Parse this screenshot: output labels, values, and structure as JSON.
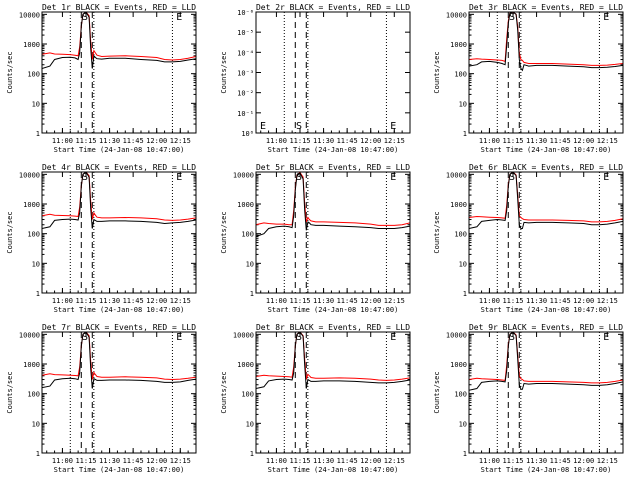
{
  "colors": {
    "background": "#ffffff",
    "axes": "#000000",
    "events": "#000000",
    "lld": "#ff0000"
  },
  "x_ticks": [
    "11:00",
    "11:15",
    "11:30",
    "11:45",
    "12:00",
    "12:15"
  ],
  "y_ticks_log": [
    "1",
    "10",
    "100",
    "1000",
    "10000"
  ],
  "y_ticks_tiny": [
    "10⁻⁶",
    "10⁻⁵",
    "10⁻⁴",
    "10⁻³",
    "10⁻²",
    "10⁻¹",
    "10⁰"
  ],
  "ylabel": "Counts/sec",
  "xlabel": "Start Time (24-Jan-08 10:47:00)",
  "markers": {
    "s": "S",
    "e": "E"
  },
  "chart_data": [
    {
      "type": "line",
      "title": "Det 1r BLACK = Events, RED = LLD",
      "xlim": [
        "10:47",
        "12:25"
      ],
      "yscale": "log",
      "ylim": [
        1,
        12000
      ],
      "tiny": false,
      "s_time": "11:15",
      "e_time": "12:15",
      "dotted": [
        "11:05",
        "11:20",
        "12:10"
      ],
      "dashed": [
        "11:12",
        "11:19"
      ],
      "x": [
        "10:47",
        "10:52",
        "10:55",
        "11:00",
        "11:05",
        "11:08",
        "11:10",
        "11:11",
        "11:12",
        "11:13",
        "11:15",
        "11:17",
        "11:18",
        "11:19",
        "11:20",
        "11:21",
        "11:22",
        "11:25",
        "11:30",
        "11:40",
        "11:50",
        "12:00",
        "12:05",
        "12:10",
        "12:15",
        "12:20",
        "12:25"
      ],
      "series": [
        {
          "name": "BLACK = Events",
          "values": [
            150,
            180,
            300,
            350,
            360,
            340,
            300,
            500,
            4000,
            10000,
            12000,
            8000,
            700,
            150,
            400,
            350,
            320,
            310,
            330,
            330,
            300,
            280,
            250,
            250,
            260,
            290,
            320
          ]
        },
        {
          "name": "RED = LLD",
          "values": [
            450,
            500,
            460,
            450,
            440,
            420,
            400,
            800,
            4000,
            10000,
            12000,
            9000,
            1200,
            300,
            600,
            500,
            420,
            380,
            390,
            400,
            380,
            350,
            300,
            290,
            300,
            330,
            380
          ]
        }
      ]
    },
    {
      "type": "line",
      "title": "Det 2r BLACK = Events, RED = LLD",
      "xlim": [
        "10:47",
        "12:25"
      ],
      "yscale": "log",
      "ylim": [
        1,
        1e-06
      ],
      "tiny": true,
      "s_time": "11:15",
      "e_time": "12:15",
      "dotted": [
        "11:05",
        "11:20",
        "12:10"
      ],
      "dashed": [
        "11:12",
        "11:19"
      ],
      "x": [],
      "series": []
    },
    {
      "type": "line",
      "title": "Det 3r BLACK = Events, RED = LLD",
      "xlim": [
        "10:47",
        "12:25"
      ],
      "yscale": "log",
      "ylim": [
        1,
        12000
      ],
      "tiny": false,
      "s_time": "11:15",
      "e_time": "12:15",
      "dotted": [
        "11:05",
        "11:20",
        "12:10"
      ],
      "dashed": [
        "11:12",
        "11:19"
      ],
      "x": [
        "10:47",
        "10:52",
        "10:55",
        "11:00",
        "11:05",
        "11:08",
        "11:10",
        "11:11",
        "11:12",
        "11:13",
        "11:15",
        "11:17",
        "11:18",
        "11:19",
        "11:20",
        "11:21",
        "11:22",
        "11:25",
        "11:30",
        "11:40",
        "11:50",
        "12:00",
        "12:05",
        "12:10",
        "12:15",
        "12:20",
        "12:25"
      ],
      "series": [
        {
          "name": "BLACK = Events",
          "values": [
            180,
            200,
            250,
            260,
            240,
            220,
            200,
            900,
            5000,
            11000,
            12000,
            10000,
            3000,
            300,
            150,
            130,
            200,
            180,
            190,
            190,
            180,
            170,
            160,
            160,
            165,
            175,
            190
          ]
        },
        {
          "name": "RED = LLD",
          "values": [
            300,
            320,
            310,
            300,
            290,
            280,
            260,
            1500,
            6000,
            11000,
            12000,
            10000,
            4000,
            500,
            300,
            280,
            240,
            220,
            220,
            220,
            210,
            200,
            190,
            190,
            195,
            205,
            220
          ]
        }
      ]
    },
    {
      "type": "line",
      "title": "Det 4r BLACK = Events, RED = LLD",
      "xlim": [
        "10:47",
        "12:25"
      ],
      "yscale": "log",
      "ylim": [
        1,
        12000
      ],
      "tiny": false,
      "s_time": "11:15",
      "e_time": "12:15",
      "dotted": [
        "11:05",
        "11:20",
        "12:10"
      ],
      "dashed": [
        "11:12",
        "11:19"
      ],
      "x": [
        "10:47",
        "10:52",
        "10:55",
        "11:00",
        "11:05",
        "11:08",
        "11:10",
        "11:11",
        "11:12",
        "11:13",
        "11:15",
        "11:17",
        "11:18",
        "11:19",
        "11:20",
        "11:21",
        "11:22",
        "11:25",
        "11:30",
        "11:40",
        "11:50",
        "12:00",
        "12:05",
        "12:10",
        "12:15",
        "12:20",
        "12:25"
      ],
      "series": [
        {
          "name": "BLACK = Events",
          "values": [
            150,
            170,
            280,
            300,
            310,
            300,
            290,
            500,
            4000,
            10000,
            12000,
            8000,
            700,
            150,
            300,
            280,
            260,
            260,
            270,
            270,
            260,
            240,
            220,
            230,
            240,
            260,
            290
          ]
        },
        {
          "name": "RED = LLD",
          "values": [
            400,
            450,
            420,
            410,
            400,
            390,
            380,
            800,
            4000,
            10000,
            12000,
            9000,
            1200,
            300,
            500,
            420,
            360,
            340,
            340,
            350,
            340,
            320,
            290,
            280,
            290,
            310,
            340
          ]
        }
      ]
    },
    {
      "type": "line",
      "title": "Det 5r BLACK = Events, RED = LLD",
      "xlim": [
        "10:47",
        "12:25"
      ],
      "yscale": "log",
      "ylim": [
        1,
        12000
      ],
      "tiny": false,
      "s_time": "11:15",
      "e_time": "12:15",
      "dotted": [
        "11:05",
        "11:20",
        "12:10"
      ],
      "dashed": [
        "11:12",
        "11:19"
      ],
      "x": [
        "10:47",
        "10:52",
        "10:55",
        "11:00",
        "11:05",
        "11:08",
        "11:10",
        "11:11",
        "11:12",
        "11:13",
        "11:15",
        "11:17",
        "11:18",
        "11:19",
        "11:20",
        "11:21",
        "11:22",
        "11:25",
        "11:30",
        "11:40",
        "11:50",
        "12:00",
        "12:05",
        "12:10",
        "12:15",
        "12:20",
        "12:25"
      ],
      "series": [
        {
          "name": "BLACK = Events",
          "values": [
            80,
            100,
            150,
            170,
            180,
            170,
            160,
            400,
            3000,
            9000,
            11000,
            7000,
            600,
            130,
            250,
            230,
            200,
            190,
            190,
            180,
            170,
            160,
            150,
            150,
            150,
            160,
            180
          ]
        },
        {
          "name": "RED = LLD",
          "values": [
            200,
            230,
            220,
            210,
            210,
            200,
            200,
            600,
            3500,
            9500,
            11500,
            8000,
            1000,
            250,
            350,
            300,
            270,
            250,
            250,
            240,
            230,
            210,
            190,
            190,
            190,
            200,
            230
          ]
        }
      ]
    },
    {
      "type": "line",
      "title": "Det 6r BLACK = Events, RED = LLD",
      "xlim": [
        "10:47",
        "12:25"
      ],
      "yscale": "log",
      "ylim": [
        1,
        12000
      ],
      "tiny": false,
      "s_time": "11:15",
      "e_time": "12:15",
      "dotted": [
        "11:05",
        "11:20",
        "12:10"
      ],
      "dashed": [
        "11:12",
        "11:19"
      ],
      "x": [
        "10:47",
        "10:52",
        "10:55",
        "11:00",
        "11:05",
        "11:08",
        "11:10",
        "11:11",
        "11:12",
        "11:13",
        "11:15",
        "11:17",
        "11:18",
        "11:19",
        "11:20",
        "11:21",
        "11:22",
        "11:25",
        "11:30",
        "11:40",
        "11:50",
        "12:00",
        "12:05",
        "12:10",
        "12:15",
        "12:20",
        "12:25"
      ],
      "series": [
        {
          "name": "BLACK = Events",
          "values": [
            150,
            170,
            260,
            280,
            300,
            290,
            280,
            600,
            4000,
            10000,
            12000,
            9000,
            1500,
            200,
            150,
            150,
            240,
            230,
            240,
            240,
            230,
            220,
            200,
            200,
            210,
            230,
            260
          ]
        },
        {
          "name": "RED = LLD",
          "values": [
            350,
            380,
            370,
            360,
            350,
            340,
            330,
            900,
            4500,
            10000,
            12000,
            9500,
            2000,
            400,
            350,
            320,
            300,
            290,
            290,
            290,
            280,
            270,
            250,
            250,
            260,
            280,
            320
          ]
        }
      ]
    },
    {
      "type": "line",
      "title": "Det 7r BLACK = Events, RED = LLD",
      "xlim": [
        "10:47",
        "12:25"
      ],
      "yscale": "log",
      "ylim": [
        1,
        12000
      ],
      "tiny": false,
      "s_time": "11:15",
      "e_time": "12:15",
      "dotted": [
        "11:05",
        "11:20",
        "12:10"
      ],
      "dashed": [
        "11:12",
        "11:19"
      ],
      "x": [
        "10:47",
        "10:52",
        "10:55",
        "11:00",
        "11:05",
        "11:08",
        "11:10",
        "11:11",
        "11:12",
        "11:13",
        "11:15",
        "11:17",
        "11:18",
        "11:19",
        "11:20",
        "11:21",
        "11:22",
        "11:25",
        "11:30",
        "11:40",
        "11:50",
        "12:00",
        "12:05",
        "12:10",
        "12:15",
        "12:20",
        "12:25"
      ],
      "series": [
        {
          "name": "BLACK = Events",
          "values": [
            160,
            180,
            290,
            320,
            330,
            320,
            300,
            500,
            4000,
            10000,
            12000,
            8000,
            700,
            150,
            320,
            300,
            280,
            280,
            290,
            290,
            280,
            260,
            240,
            240,
            250,
            280,
            310
          ]
        },
        {
          "name": "RED = LLD",
          "values": [
            420,
            470,
            440,
            430,
            420,
            410,
            400,
            800,
            4000,
            10000,
            12000,
            9000,
            1200,
            300,
            520,
            440,
            380,
            360,
            360,
            370,
            360,
            340,
            310,
            300,
            310,
            330,
            360
          ]
        }
      ]
    },
    {
      "type": "line",
      "title": "Det 8r BLACK = Events, RED = LLD",
      "xlim": [
        "10:47",
        "12:25"
      ],
      "yscale": "log",
      "ylim": [
        1,
        12000
      ],
      "tiny": false,
      "s_time": "11:15",
      "e_time": "12:15",
      "dotted": [
        "11:05",
        "11:20",
        "12:10"
      ],
      "dashed": [
        "11:12",
        "11:19"
      ],
      "x": [
        "10:47",
        "10:52",
        "10:55",
        "11:00",
        "11:05",
        "11:08",
        "11:10",
        "11:11",
        "11:12",
        "11:13",
        "11:15",
        "11:17",
        "11:18",
        "11:19",
        "11:20",
        "11:21",
        "11:22",
        "11:25",
        "11:30",
        "11:40",
        "11:50",
        "12:00",
        "12:05",
        "12:10",
        "12:15",
        "12:20",
        "12:25"
      ],
      "series": [
        {
          "name": "BLACK = Events",
          "values": [
            150,
            170,
            270,
            300,
            310,
            300,
            290,
            500,
            4000,
            10000,
            12000,
            8500,
            900,
            150,
            300,
            280,
            260,
            260,
            270,
            270,
            260,
            240,
            230,
            230,
            240,
            260,
            290
          ]
        },
        {
          "name": "RED = LLD",
          "values": [
            380,
            420,
            400,
            390,
            380,
            370,
            360,
            800,
            4000,
            10000,
            12000,
            9000,
            1400,
            300,
            450,
            400,
            350,
            330,
            330,
            340,
            330,
            310,
            290,
            280,
            290,
            310,
            340
          ]
        }
      ]
    },
    {
      "type": "line",
      "title": "Det 9r BLACK = Events, RED = LLD",
      "xlim": [
        "10:47",
        "12:25"
      ],
      "yscale": "log",
      "ylim": [
        1,
        12000
      ],
      "tiny": false,
      "s_time": "11:15",
      "e_time": "12:15",
      "dotted": [
        "11:05",
        "11:20",
        "12:10"
      ],
      "dashed": [
        "11:12",
        "11:19"
      ],
      "x": [
        "10:47",
        "10:52",
        "10:55",
        "11:00",
        "11:05",
        "11:08",
        "11:10",
        "11:11",
        "11:12",
        "11:13",
        "11:15",
        "11:17",
        "11:18",
        "11:19",
        "11:20",
        "11:21",
        "11:22",
        "11:25",
        "11:30",
        "11:40",
        "11:50",
        "12:00",
        "12:05",
        "12:10",
        "12:15",
        "12:20",
        "12:25"
      ],
      "series": [
        {
          "name": "BLACK = Events",
          "values": [
            130,
            150,
            240,
            260,
            270,
            260,
            250,
            600,
            4000,
            10000,
            12000,
            9000,
            1500,
            200,
            140,
            140,
            220,
            210,
            220,
            220,
            210,
            200,
            190,
            190,
            200,
            220,
            250
          ]
        },
        {
          "name": "RED = LLD",
          "values": [
            300,
            330,
            320,
            310,
            300,
            290,
            280,
            900,
            4500,
            10000,
            12000,
            9500,
            2000,
            400,
            320,
            300,
            270,
            260,
            260,
            260,
            250,
            240,
            230,
            230,
            240,
            260,
            290
          ]
        }
      ]
    }
  ]
}
